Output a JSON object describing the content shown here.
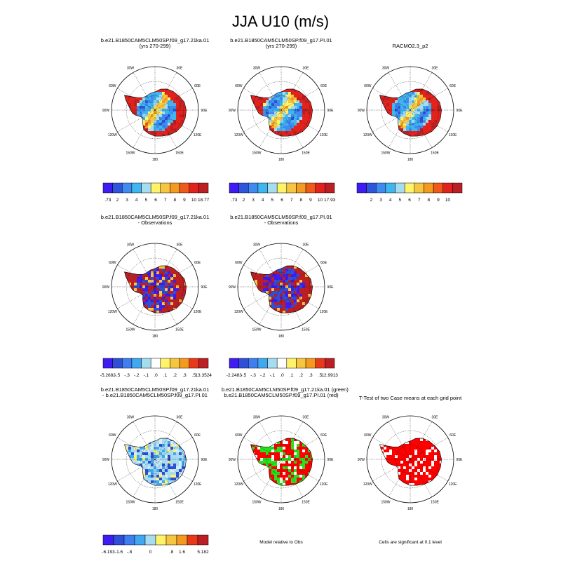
{
  "title": "JJA U10 (m/s)",
  "panels": [
    {
      "id": "case1",
      "title_lines": [
        "b.e21.B1850CAM5CLM50SP.f09_g17.21ka.01",
        "(yrs 270-299)"
      ],
      "scheme": "abs",
      "cbar_labels": [
        ".73",
        "2",
        "3",
        "4",
        "5",
        "6",
        "7",
        "8",
        "9",
        "10",
        "18.77"
      ]
    },
    {
      "id": "case2",
      "title_lines": [
        "b.e21.B1850CAM5CLM50SP.f09_g17.PI.01",
        "(yrs 270-299)"
      ],
      "scheme": "abs",
      "cbar_labels": [
        ".73",
        "2",
        "3",
        "4",
        "5",
        "6",
        "7",
        "8",
        "9",
        "10",
        "17.93"
      ]
    },
    {
      "id": "obs",
      "title_lines": [
        "RACMO2.3_p2"
      ],
      "scheme": "abs",
      "cbar_labels": [
        "",
        "2",
        "3",
        "4",
        "5",
        "6",
        "7",
        "8",
        "9",
        "10",
        ""
      ]
    },
    {
      "id": "case1-minus-obs",
      "title_lines": [
        "b.e21.B1850CAM5CLM50SP.f09_g17.21ka.01",
        "- Observations"
      ],
      "scheme": "diff-obs",
      "cbar_labels": [
        "-5.2682",
        "-.5",
        "-.3",
        "-.2",
        "-.1",
        ".0",
        ".1",
        ".2",
        ".3",
        ".5",
        "13.3524"
      ]
    },
    {
      "id": "case2-minus-obs",
      "title_lines": [
        "b.e21.B1850CAM5CLM50SP.f09_g17.PI.01",
        "- Observations"
      ],
      "scheme": "diff-obs",
      "cbar_labels": [
        "-2.2483",
        "-.5",
        "-.3",
        "-.2",
        "-.1",
        ".0",
        ".1",
        ".2",
        ".3",
        ".5",
        "12.9913"
      ]
    },
    {
      "id": "case1-minus-case2",
      "title_lines": [
        "b.e21.B1850CAM5CLM50SP.f09_g17.21ka.01",
        "- b.e21.B1850CAM5CLM50SP.f09_g17.PI.01"
      ],
      "scheme": "diff-case",
      "cbar_labels": [
        "-6.193",
        "-1.6",
        "-.8",
        "",
        "0",
        "",
        ".8",
        "1.6",
        "",
        "5.182"
      ]
    },
    {
      "id": "model-vs-obs",
      "title_lines": [
        "b.e21.B1850CAM5CLM50SP.f09_g17.21ka.01 (green)",
        "b.e21.B1850CAM5CLM50SP.f09_g17.PI.01 (red)"
      ],
      "scheme": "greenred",
      "caption": "Model relative to Obs"
    },
    {
      "id": "ttest",
      "title_lines": [
        "T-Test of two Case means at each grid point"
      ],
      "scheme": "ttest",
      "caption": "Cells are significant at 0.1 level"
    }
  ],
  "lon_labels": [
    "30W",
    "30E",
    "60W",
    "60E",
    "90W",
    "90E",
    "120W",
    "120E",
    "150W",
    "150E",
    "180"
  ],
  "colors": {
    "abs": [
      "#3f1cf2",
      "#2f55dc",
      "#3f8cf0",
      "#3fb6f2",
      "#a6dcf0",
      "#fff36a",
      "#f7c640",
      "#f39a1f",
      "#ef5a1a",
      "#e2221c",
      "#bb1f23"
    ],
    "diff": [
      "#3f1cf2",
      "#2f4fd8",
      "#3f7ef0",
      "#3fa8f0",
      "#a6dcf0",
      "#ffffff",
      "#fff36a",
      "#f7c640",
      "#f39a1f",
      "#e83a1a",
      "#bb1f23"
    ],
    "land_green": "#24e21c",
    "land_red": "#ff0000"
  }
}
